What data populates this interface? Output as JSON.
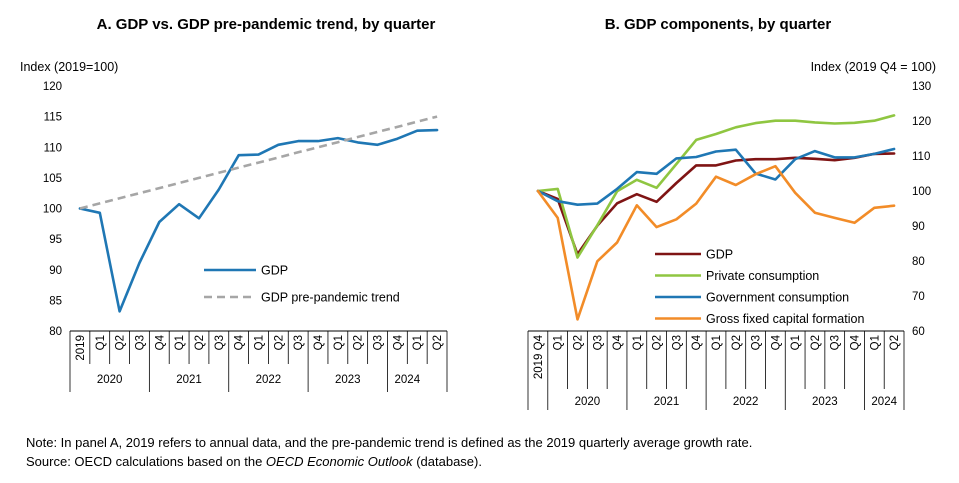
{
  "chart_data": [
    {
      "type": "line",
      "title": "A. GDP vs. GDP pre-pandemic trend, by quarter",
      "ylabel": "Index (2019=100)",
      "ylim": [
        80,
        120
      ],
      "yticks": [
        "120",
        "115",
        "110",
        "105",
        "100",
        "95",
        "90",
        "85",
        "80"
      ],
      "x": [
        "2019",
        "Q1",
        "Q2",
        "Q3",
        "Q4",
        "Q1",
        "Q2",
        "Q3",
        "Q4",
        "Q1",
        "Q2",
        "Q3",
        "Q4",
        "Q1",
        "Q2",
        "Q3",
        "Q4",
        "Q1",
        "Q2"
      ],
      "year_groups": [
        {
          "label": "2020",
          "count": 4
        },
        {
          "label": "2021",
          "count": 4
        },
        {
          "label": "2022",
          "count": 4
        },
        {
          "label": "2023",
          "count": 4
        },
        {
          "label": "2024",
          "count": 2
        }
      ],
      "series": [
        {
          "name": "GDP",
          "color": "#1f77b4",
          "style": "solid",
          "values": [
            100,
            99.3,
            83.2,
            91.1,
            97.8,
            100.7,
            98.4,
            103.1,
            108.7,
            108.8,
            110.4,
            111.0,
            111.0,
            111.5,
            110.8,
            110.4,
            111.4,
            112.7,
            112.8
          ]
        },
        {
          "name": "GDP pre-pandemic trend",
          "color": "#a6a6a6",
          "style": "dashed",
          "values": [
            100,
            100.83,
            101.67,
            102.5,
            103.33,
            104.17,
            105.0,
            105.83,
            106.67,
            107.5,
            108.33,
            109.17,
            110.0,
            110.83,
            111.67,
            112.5,
            113.33,
            114.17,
            115.0
          ]
        }
      ],
      "legend_position": "lower-right"
    },
    {
      "type": "line",
      "title": "B. GDP components, by quarter",
      "ylabel": "Index (2019 Q4 = 100)",
      "ylim": [
        60,
        130
      ],
      "yticks": [
        "130",
        "120",
        "110",
        "100",
        "90",
        "80",
        "70",
        "60"
      ],
      "x": [
        "2019 Q4",
        "Q1",
        "Q2",
        "Q3",
        "Q4",
        "Q1",
        "Q2",
        "Q3",
        "Q4",
        "Q1",
        "Q2",
        "Q3",
        "Q4",
        "Q1",
        "Q2",
        "Q3",
        "Q4",
        "Q1",
        "Q2"
      ],
      "year_groups": [
        {
          "label": "",
          "count": 1
        },
        {
          "label": "2020",
          "count": 4
        },
        {
          "label": "2021",
          "count": 4
        },
        {
          "label": "2022",
          "count": 4
        },
        {
          "label": "2023",
          "count": 4
        },
        {
          "label": "2024",
          "count": 2
        }
      ],
      "series": [
        {
          "name": "GDP",
          "color": "#7f1414",
          "values": [
            100,
            97.7,
            81.9,
            90.1,
            96.5,
            99.1,
            96.9,
            102.3,
            107.3,
            107.3,
            108.7,
            109.1,
            109.1,
            109.5,
            109.2,
            108.8,
            109.5,
            110.6,
            110.7
          ]
        },
        {
          "name": "Private consumption",
          "color": "#8fc641",
          "values": [
            100,
            100.6,
            81.0,
            90.2,
            99.9,
            103.2,
            100.9,
            107.7,
            114.6,
            116.3,
            118.2,
            119.4,
            120.1,
            120.1,
            119.6,
            119.3,
            119.5,
            120.1,
            121.6
          ]
        },
        {
          "name": "Government consumption",
          "color": "#1f77b4",
          "values": [
            100,
            97.1,
            96.1,
            96.4,
            100.6,
            105.4,
            104.9,
            109.3,
            109.7,
            111.3,
            111.8,
            105.0,
            103.3,
            109.1,
            111.4,
            109.6,
            109.6,
            110.6,
            112.0
          ]
        },
        {
          "name": "Gross fixed capital formation",
          "color": "#f28c28",
          "values": [
            100,
            92.3,
            63.3,
            79.9,
            85.3,
            95.9,
            89.7,
            91.9,
            96.4,
            104.1,
            101.7,
            104.8,
            107.1,
            99.5,
            93.8,
            92.3,
            90.9,
            95.2,
            95.8
          ]
        }
      ],
      "legend_position": "lower-right"
    }
  ],
  "footnote": {
    "note": "Note: In panel A, 2019 refers to annual data, and the pre-pandemic trend is defined as the 2019 quarterly average growth rate.",
    "source_prefix": "Source: OECD calculations based on the ",
    "source_italic": "OECD Economic Outlook",
    "source_suffix": " (database)."
  }
}
